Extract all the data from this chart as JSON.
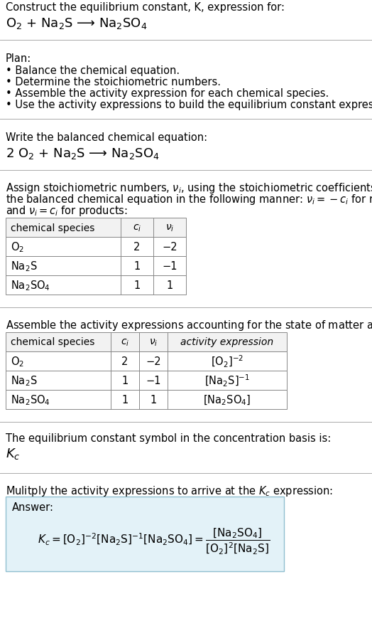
{
  "title_line1": "Construct the equilibrium constant, K, expression for:",
  "title_line2": "O$_2$ + Na$_2$S ⟶ Na$_2$SO$_4$",
  "plan_header": "Plan:",
  "plan_items": [
    "• Balance the chemical equation.",
    "• Determine the stoichiometric numbers.",
    "• Assemble the activity expression for each chemical species.",
    "• Use the activity expressions to build the equilibrium constant expression."
  ],
  "balanced_header": "Write the balanced chemical equation:",
  "balanced_eq": "2 O$_2$ + Na$_2$S ⟶ Na$_2$SO$_4$",
  "stoich_intro_lines": [
    "Assign stoichiometric numbers, $\\nu_i$, using the stoichiometric coefficients, $c_i$, from",
    "the balanced chemical equation in the following manner: $\\nu_i = -c_i$ for reactants",
    "and $\\nu_i = c_i$ for products:"
  ],
  "table1_headers": [
    "chemical species",
    "$c_i$",
    "$\\nu_i$"
  ],
  "table1_rows": [
    [
      "O$_2$",
      "2",
      "−2"
    ],
    [
      "Na$_2$S",
      "1",
      "−1"
    ],
    [
      "Na$_2$SO$_4$",
      "1",
      "1"
    ]
  ],
  "activity_intro": "Assemble the activity expressions accounting for the state of matter and $\\nu_i$:",
  "table2_headers": [
    "chemical species",
    "$c_i$",
    "$\\nu_i$",
    "activity expression"
  ],
  "table2_rows": [
    [
      "O$_2$",
      "2",
      "−2",
      "$[\\mathrm{O_2}]^{-2}$"
    ],
    [
      "Na$_2$S",
      "1",
      "−1",
      "$[\\mathrm{Na_2S}]^{-1}$"
    ],
    [
      "Na$_2$SO$_4$",
      "1",
      "1",
      "$[\\mathrm{Na_2SO_4}]$"
    ]
  ],
  "kc_intro": "The equilibrium constant symbol in the concentration basis is:",
  "kc_symbol": "$K_c$",
  "multiply_intro": "Mulitply the activity expressions to arrive at the $K_c$ expression:",
  "answer_label": "Answer:",
  "bg_color": "#ffffff",
  "answer_bg": "#e3f2f8",
  "answer_border": "#90bfd0",
  "text_color": "#000000",
  "font_size": 10.5,
  "small_font": 10.0
}
